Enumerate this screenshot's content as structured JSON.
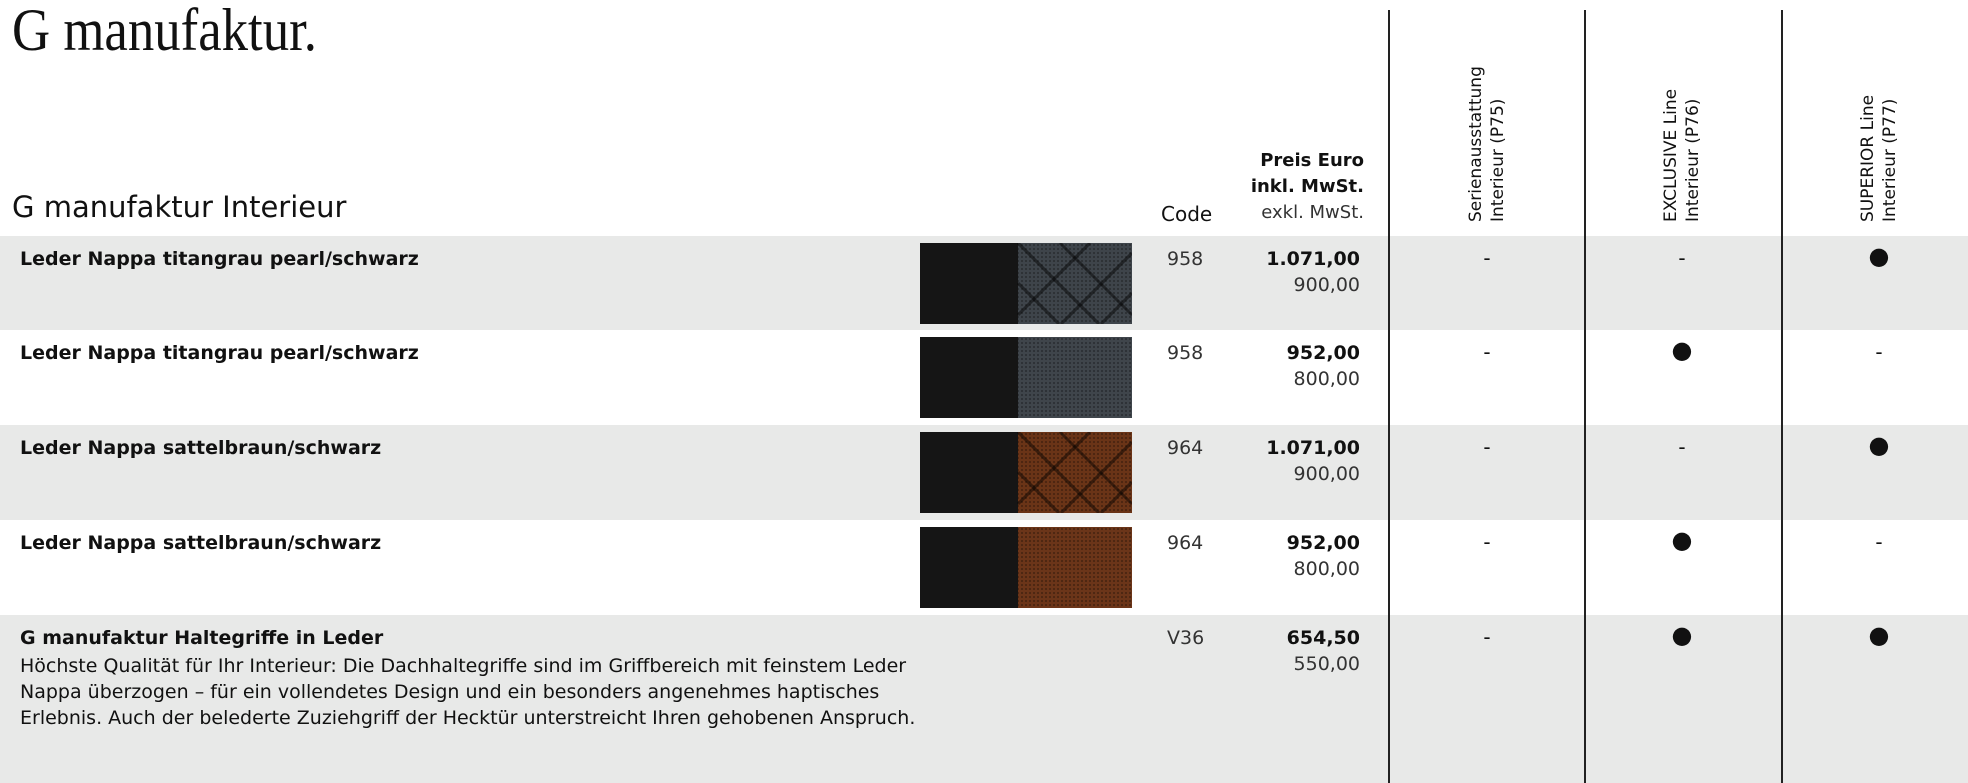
{
  "header": {
    "title": "G manufaktur.",
    "section": "G manufaktur Interieur",
    "code_label": "Code",
    "price_label": [
      "Preis Euro",
      "inkl. MwSt.",
      "exkl. MwSt."
    ],
    "columns": [
      [
        "Serienausstattung",
        "Interieur (P75)"
      ],
      [
        "EXCLUSIVE Line",
        "Interieur (P76)"
      ],
      [
        "SUPERIOR Line",
        "Interieur (P77)"
      ]
    ]
  },
  "table": {
    "rows": [
      {
        "name": "Leder Nappa titangrau pearl/schwarz",
        "code": "958",
        "price_incl": "1.071,00",
        "price_excl": "900,00",
        "marks": [
          "-",
          "-",
          "●"
        ]
      },
      {
        "name": "Leder Nappa titangrau pearl/schwarz",
        "code": "958",
        "price_incl": "952,00",
        "price_excl": "800,00",
        "marks": [
          "-",
          "●",
          "-"
        ]
      },
      {
        "name": "Leder Nappa sattelbraun/schwarz",
        "code": "964",
        "price_incl": "1.071,00",
        "price_excl": "900,00",
        "marks": [
          "-",
          "-",
          "●"
        ]
      },
      {
        "name": "Leder Nappa sattelbraun/schwarz",
        "code": "964",
        "price_incl": "952,00",
        "price_excl": "800,00",
        "marks": [
          "-",
          "●",
          "-"
        ]
      },
      {
        "name": "G manufaktur Haltegriffe in Leder",
        "description": "Höchste Qualität für Ihr Interieur: Die Dachhaltegriffe sind im Griffbereich mit feinstem Leder Nappa überzogen – für ein vollendetes Design und ein besonders angenehmes haptisches Erlebnis. Auch der belederte Zuziehgriff der Hecktür unterstreicht Ihren gehobenen Anspruch.",
        "code": "V36",
        "price_incl": "654,50",
        "price_excl": "550,00",
        "marks": [
          "-",
          "●",
          "●"
        ]
      }
    ]
  }
}
